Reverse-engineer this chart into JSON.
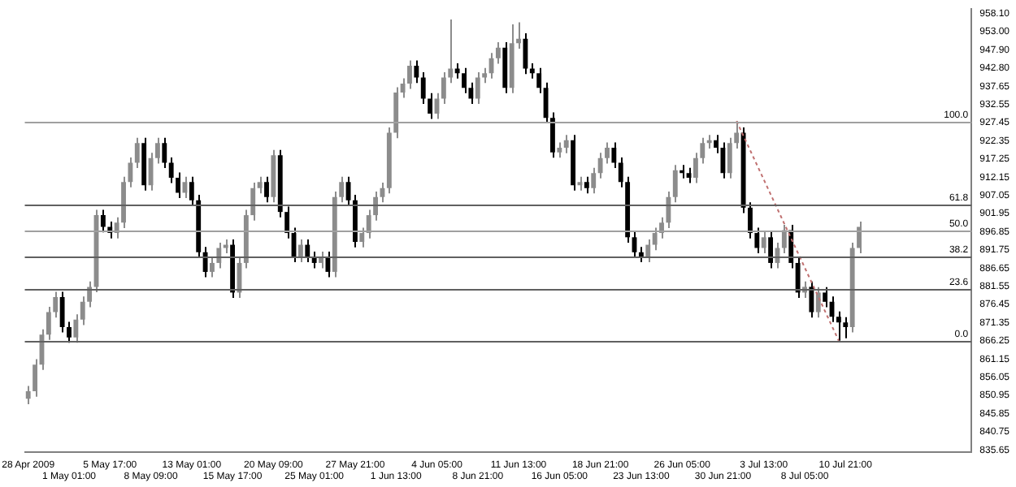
{
  "chart_data": {
    "type": "candlestick",
    "categories": [
      "28 Apr 2009",
      null,
      null,
      null,
      null,
      null,
      "1 May 01:00",
      null,
      null,
      null,
      null,
      null,
      "5 May 17:00",
      null,
      null,
      null,
      null,
      null,
      "8 May 09:00",
      null,
      null,
      null,
      null,
      null,
      "13 May 01:00",
      null,
      null,
      null,
      null,
      null,
      "15 May 17:00",
      null,
      null,
      null,
      null,
      null,
      "20 May 09:00",
      null,
      null,
      null,
      null,
      null,
      "25 May 01:00",
      null,
      null,
      null,
      null,
      null,
      "27 May 21:00",
      null,
      null,
      null,
      null,
      null,
      "1 Jun 13:00",
      null,
      null,
      null,
      null,
      null,
      "4 Jun 05:00",
      null,
      null,
      null,
      null,
      null,
      "8 Jun 21:00",
      null,
      null,
      null,
      null,
      null,
      "11 Jun 13:00",
      null,
      null,
      null,
      null,
      null,
      "16 Jun 05:00",
      null,
      null,
      null,
      null,
      null,
      "18 Jun 21:00",
      null,
      null,
      null,
      null,
      null,
      "23 Jun 13:00",
      null,
      null,
      null,
      null,
      null,
      "26 Jun 05:00",
      null,
      null,
      null,
      null,
      null,
      "30 Jun 21:00",
      null,
      null,
      null,
      null,
      null,
      "3 Jul 13:00",
      null,
      null,
      null,
      null,
      null,
      "8 Jul 05:00",
      null,
      null,
      null,
      null,
      null,
      "10 Jul 21:00",
      null,
      null,
      null,
      null,
      null,
      null,
      null,
      null,
      null,
      null,
      null,
      null,
      null,
      null,
      null,
      null,
      null,
      null
    ],
    "series": [
      {
        "colors": [
          "#8c8c8c",
          "#8c8c8c",
          "#8c8c8c",
          "#8c8c8c",
          "#8c8c8c",
          "#000000",
          "#000000",
          "#8c8c8c",
          "#8c8c8c",
          "#8c8c8c",
          "#8c8c8c",
          "#000000",
          "#000000",
          "#8c8c8c",
          "#8c8c8c",
          "#8c8c8c",
          "#8c8c8c",
          "#000000",
          "#8c8c8c",
          "#8c8c8c",
          "#000000",
          "#000000",
          "#000000",
          "#8c8c8c",
          "#000000",
          "#000000",
          "#000000",
          "#8c8c8c",
          "#8c8c8c",
          "#8c8c8c",
          "#000000",
          "#8c8c8c",
          "#8c8c8c",
          "#8c8c8c",
          "#8c8c8c",
          "#000000",
          "#8c8c8c",
          "#000000",
          "#000000",
          "#000000",
          "#8c8c8c",
          "#000000",
          "#000000",
          "#8c8c8c",
          "#000000",
          "#8c8c8c",
          "#8c8c8c",
          "#000000",
          "#000000",
          "#8c8c8c",
          "#8c8c8c",
          "#8c8c8c",
          "#8c8c8c",
          "#8c8c8c",
          "#8c8c8c",
          "#8c8c8c",
          "#8c8c8c",
          "#000000",
          "#000000",
          "#000000",
          "#8c8c8c",
          "#8c8c8c",
          "#8c8c8c",
          "#000000",
          "#000000",
          "#000000",
          "#8c8c8c",
          "#8c8c8c",
          "#8c8c8c",
          "#8c8c8c",
          "#000000",
          "#8c8c8c",
          "#8c8c8c",
          "#000000",
          "#000000",
          "#000000",
          "#000000",
          "#000000",
          "#8c8c8c",
          "#8c8c8c",
          "#000000",
          "#8c8c8c",
          "#000000",
          "#8c8c8c",
          "#8c8c8c",
          "#8c8c8c",
          "#000000",
          "#000000",
          "#000000",
          "#000000",
          "#000000",
          "#8c8c8c",
          "#8c8c8c",
          "#8c8c8c",
          "#8c8c8c",
          "#8c8c8c",
          "#000000",
          "#000000",
          "#8c8c8c",
          "#8c8c8c",
          "#8c8c8c",
          "#000000",
          "#000000",
          "#8c8c8c",
          "#8c8c8c",
          "#000000",
          "#000000",
          "#000000",
          "#8c8c8c",
          "#000000",
          "#8c8c8c",
          "#8c8c8c",
          "#000000",
          "#000000",
          "#8c8c8c",
          "#000000",
          "#8c8c8c",
          "#000000",
          "#000000",
          "#000000",
          "#000000",
          "#8c8c8c",
          "#8c8c8c",
          null,
          null,
          null,
          null,
          null,
          null,
          null,
          null,
          null,
          null,
          null,
          null,
          null,
          null,
          null,
          null
        ],
        "ohlc": [
          [
            850.0,
            853.6,
            848.5,
            852.1
          ],
          [
            852.1,
            861.1,
            850.6,
            859.6
          ],
          [
            859.6,
            869.5,
            858.1,
            868.0
          ],
          [
            868.0,
            875.8,
            866.5,
            874.3
          ],
          [
            874.3,
            880.0,
            872.8,
            878.5
          ],
          [
            878.5,
            880.0,
            868.6,
            870.1
          ],
          [
            870.1,
            871.6,
            865.7,
            867.2
          ],
          [
            867.2,
            873.7,
            865.7,
            872.2
          ],
          [
            872.2,
            878.7,
            870.7,
            877.2
          ],
          [
            877.2,
            882.9,
            875.7,
            881.4
          ],
          [
            881.4,
            903.0,
            879.9,
            901.5
          ],
          [
            901.5,
            903.0,
            896.7,
            898.2
          ],
          [
            898.2,
            899.7,
            895.0,
            896.5
          ],
          [
            896.5,
            900.9,
            895.0,
            899.4
          ],
          [
            899.4,
            912.3,
            897.9,
            910.8
          ],
          [
            910.8,
            917.7,
            909.3,
            916.2
          ],
          [
            916.2,
            923.2,
            914.7,
            921.7
          ],
          [
            921.7,
            923.2,
            908.4,
            909.9
          ],
          [
            909.9,
            919.0,
            908.4,
            917.5
          ],
          [
            917.5,
            923.2,
            916.0,
            921.7
          ],
          [
            921.7,
            923.2,
            914.7,
            916.2
          ],
          [
            916.2,
            917.7,
            910.5,
            912.0
          ],
          [
            912.0,
            913.5,
            906.3,
            907.8
          ],
          [
            907.8,
            912.3,
            906.3,
            910.8
          ],
          [
            910.8,
            912.3,
            904.2,
            905.7
          ],
          [
            905.7,
            907.2,
            889.6,
            891.1
          ],
          [
            891.1,
            892.6,
            884.1,
            885.6
          ],
          [
            885.6,
            889.6,
            884.1,
            888.1
          ],
          [
            888.1,
            893.8,
            886.6,
            892.3
          ],
          [
            892.3,
            894.7,
            890.8,
            893.2
          ],
          [
            893.2,
            894.7,
            878.3,
            879.8
          ],
          [
            879.8,
            889.6,
            878.3,
            888.1
          ],
          [
            888.1,
            903.0,
            886.6,
            901.5
          ],
          [
            901.5,
            910.6,
            900.0,
            909.1
          ],
          [
            909.1,
            912.3,
            907.6,
            910.8
          ],
          [
            910.8,
            912.3,
            905.1,
            906.6
          ],
          [
            906.6,
            919.8,
            905.1,
            918.3
          ],
          [
            918.3,
            919.8,
            900.9,
            902.4
          ],
          [
            902.4,
            903.9,
            895.0,
            896.5
          ],
          [
            896.5,
            898.0,
            888.3,
            889.8
          ],
          [
            889.8,
            894.7,
            888.3,
            893.2
          ],
          [
            893.2,
            894.7,
            888.3,
            889.8
          ],
          [
            889.8,
            891.3,
            886.6,
            888.1
          ],
          [
            888.1,
            891.3,
            886.6,
            889.8
          ],
          [
            889.8,
            891.3,
            884.1,
            885.6
          ],
          [
            885.6,
            908.1,
            884.1,
            906.6
          ],
          [
            906.6,
            912.3,
            905.1,
            910.8
          ],
          [
            910.8,
            912.3,
            904.2,
            905.7
          ],
          [
            905.7,
            907.2,
            892.5,
            894.0
          ],
          [
            894.0,
            898.0,
            892.5,
            896.5
          ],
          [
            896.5,
            903.0,
            895.0,
            901.5
          ],
          [
            901.5,
            908.1,
            900.0,
            906.6
          ],
          [
            906.6,
            910.6,
            905.1,
            909.1
          ],
          [
            909.1,
            926.1,
            907.6,
            924.6
          ],
          [
            924.6,
            937.4,
            923.1,
            935.9
          ],
          [
            935.9,
            939.9,
            934.4,
            938.4
          ],
          [
            938.4,
            944.9,
            936.9,
            943.4
          ],
          [
            943.4,
            944.9,
            938.6,
            940.1
          ],
          [
            940.1,
            941.6,
            932.7,
            934.2
          ],
          [
            934.2,
            935.7,
            928.5,
            930.0
          ],
          [
            930.0,
            935.7,
            928.5,
            934.2
          ],
          [
            934.2,
            941.6,
            932.7,
            940.1
          ],
          [
            940.1,
            956.4,
            938.6,
            942.6
          ],
          [
            942.6,
            944.1,
            939.8,
            941.3
          ],
          [
            941.3,
            942.8,
            935.7,
            937.2
          ],
          [
            937.2,
            938.7,
            932.7,
            934.2
          ],
          [
            934.2,
            941.6,
            932.7,
            940.1
          ],
          [
            940.1,
            942.8,
            938.6,
            941.3
          ],
          [
            941.3,
            947.0,
            939.8,
            945.5
          ],
          [
            945.5,
            950.0,
            944.0,
            948.5
          ],
          [
            948.5,
            950.0,
            935.7,
            937.2
          ],
          [
            937.2,
            955.0,
            935.7,
            949.7
          ],
          [
            949.7,
            955.6,
            948.2,
            951.0
          ],
          [
            951.0,
            952.5,
            941.1,
            942.6
          ],
          [
            942.6,
            944.1,
            939.8,
            941.3
          ],
          [
            941.3,
            942.8,
            935.7,
            937.2
          ],
          [
            937.2,
            938.7,
            927.3,
            928.8
          ],
          [
            928.8,
            930.3,
            917.6,
            919.1
          ],
          [
            919.1,
            921.9,
            917.6,
            920.4
          ],
          [
            920.4,
            924.0,
            918.9,
            922.5
          ],
          [
            922.5,
            924.0,
            908.4,
            909.9
          ],
          [
            909.9,
            912.3,
            908.4,
            910.8
          ],
          [
            910.8,
            912.3,
            907.6,
            909.1
          ],
          [
            909.1,
            914.8,
            907.6,
            913.3
          ],
          [
            913.3,
            919.0,
            911.8,
            917.5
          ],
          [
            917.5,
            921.9,
            916.0,
            920.4
          ],
          [
            920.4,
            921.9,
            914.7,
            916.2
          ],
          [
            916.2,
            917.7,
            909.3,
            910.8
          ],
          [
            910.8,
            912.3,
            893.8,
            895.3
          ],
          [
            895.3,
            896.8,
            889.6,
            891.1
          ],
          [
            891.1,
            892.6,
            888.3,
            889.8
          ],
          [
            889.8,
            894.7,
            888.3,
            893.2
          ],
          [
            893.2,
            898.0,
            891.7,
            896.5
          ],
          [
            896.5,
            900.9,
            895.0,
            899.4
          ],
          [
            899.4,
            908.1,
            897.9,
            906.6
          ],
          [
            906.6,
            915.6,
            905.1,
            914.1
          ],
          [
            914.1,
            915.6,
            911.8,
            913.3
          ],
          [
            913.3,
            914.8,
            910.5,
            912.0
          ],
          [
            912.0,
            919.0,
            910.5,
            917.5
          ],
          [
            917.5,
            923.2,
            916.0,
            921.7
          ],
          [
            921.7,
            924.0,
            920.2,
            922.5
          ],
          [
            922.5,
            924.0,
            918.9,
            920.4
          ],
          [
            920.4,
            921.9,
            911.8,
            913.3
          ],
          [
            913.3,
            923.2,
            911.8,
            921.7
          ],
          [
            921.7,
            927.9,
            920.2,
            924.6
          ],
          [
            924.6,
            926.1,
            902.1,
            903.6
          ],
          [
            903.6,
            905.1,
            895.0,
            896.5
          ],
          [
            896.5,
            898.0,
            890.8,
            892.3
          ],
          [
            892.3,
            896.8,
            890.8,
            895.3
          ],
          [
            895.3,
            896.8,
            886.6,
            888.1
          ],
          [
            888.1,
            893.8,
            886.6,
            892.3
          ],
          [
            892.3,
            898.8,
            890.8,
            897.3
          ],
          [
            897.3,
            898.8,
            886.6,
            888.1
          ],
          [
            888.1,
            889.6,
            878.3,
            879.8
          ],
          [
            879.8,
            882.9,
            878.3,
            881.4
          ],
          [
            881.4,
            882.9,
            872.8,
            874.3
          ],
          [
            874.3,
            881.3,
            872.8,
            879.8
          ],
          [
            879.8,
            881.3,
            875.7,
            877.2
          ],
          [
            877.2,
            878.7,
            871.5,
            873.0
          ],
          [
            873.0,
            874.5,
            866.3,
            871.4
          ],
          [
            871.4,
            872.9,
            867.0,
            870.1
          ],
          [
            870.1,
            893.8,
            868.6,
            892.3
          ],
          [
            892.3,
            899.7,
            890.8,
            898.2
          ],
          null,
          null,
          null,
          null,
          null,
          null,
          null,
          null,
          null,
          null,
          null,
          null,
          null,
          null,
          null,
          null
        ]
      },
      {
        "type": "line",
        "color": "#c07070",
        "line_style": "dotted",
        "values": [
          null,
          null,
          null,
          null,
          null,
          null,
          null,
          null,
          null,
          null,
          null,
          null,
          null,
          null,
          null,
          null,
          null,
          null,
          null,
          null,
          null,
          null,
          null,
          null,
          null,
          null,
          null,
          null,
          null,
          null,
          null,
          null,
          null,
          null,
          null,
          null,
          null,
          null,
          null,
          null,
          null,
          null,
          null,
          null,
          null,
          null,
          null,
          null,
          null,
          null,
          null,
          null,
          null,
          null,
          null,
          null,
          null,
          null,
          null,
          null,
          null,
          null,
          null,
          null,
          null,
          null,
          null,
          null,
          null,
          null,
          null,
          null,
          null,
          null,
          null,
          null,
          null,
          null,
          null,
          null,
          null,
          null,
          null,
          null,
          null,
          null,
          null,
          null,
          null,
          null,
          null,
          null,
          null,
          null,
          null,
          null,
          null,
          null,
          null,
          null,
          null,
          null,
          null,
          null,
          927.9,
          null,
          null,
          null,
          null,
          null,
          null,
          null,
          null,
          null,
          null,
          null,
          null,
          null,
          null,
          866.3,
          null,
          null,
          null,
          null,
          null,
          null,
          null,
          null,
          null,
          null,
          null,
          null,
          null,
          null,
          null,
          null,
          null,
          null,
          null
        ]
      }
    ],
    "ylim": [
      835.0,
      959.3
    ],
    "yticks": [
      {
        "value": 958.1,
        "label": "958.10"
      },
      {
        "value": 953.0,
        "label": "953.00"
      },
      {
        "value": 947.9,
        "label": "947.90"
      },
      {
        "value": 942.8,
        "label": "942.80"
      },
      {
        "value": 937.65,
        "label": "937.65"
      },
      {
        "value": 932.55,
        "label": "932.55"
      },
      {
        "value": 927.45,
        "label": "927.45"
      },
      {
        "value": 922.35,
        "label": "922.35"
      },
      {
        "value": 917.25,
        "label": "917.25"
      },
      {
        "value": 912.15,
        "label": "912.15"
      },
      {
        "value": 907.05,
        "label": "907.05"
      },
      {
        "value": 901.95,
        "label": "901.95"
      },
      {
        "value": 896.85,
        "label": "896.85"
      },
      {
        "value": 891.75,
        "label": "891.75"
      },
      {
        "value": 886.65,
        "label": "886.65"
      },
      {
        "value": 881.55,
        "label": "881.55"
      },
      {
        "value": 876.45,
        "label": "876.45"
      },
      {
        "value": 871.35,
        "label": "871.35"
      },
      {
        "value": 866.25,
        "label": "866.25"
      },
      {
        "value": 861.15,
        "label": "861.15"
      },
      {
        "value": 856.05,
        "label": "856.05"
      },
      {
        "value": 850.95,
        "label": "850.95"
      },
      {
        "value": 845.85,
        "label": "845.85"
      },
      {
        "value": 840.75,
        "label": "840.75"
      },
      {
        "value": 835.65,
        "label": "835.65"
      }
    ],
    "ref_lines": [
      {
        "axis": "y",
        "value": 927.9,
        "color": "#a0a0a0"
      },
      {
        "axis": "y",
        "value": 904.4,
        "color": "#606060"
      },
      {
        "axis": "y",
        "value": 897.1,
        "color": "#a0a0a0"
      },
      {
        "axis": "y",
        "value": 889.8,
        "color": "#606060"
      },
      {
        "axis": "y",
        "value": 880.8,
        "color": "#606060"
      },
      {
        "axis": "y",
        "value": 866.3,
        "color": "#606060"
      }
    ],
    "annotations": [
      {
        "text": "100.0",
        "y": 927.9
      },
      {
        "text": "61.8",
        "y": 904.4
      },
      {
        "text": "50.0",
        "y": 897.1
      },
      {
        "text": "38.2",
        "y": 889.8
      },
      {
        "text": "23.6",
        "y": 880.8
      },
      {
        "text": "0.0",
        "y": 866.3
      }
    ],
    "grid": false,
    "legend": false
  }
}
